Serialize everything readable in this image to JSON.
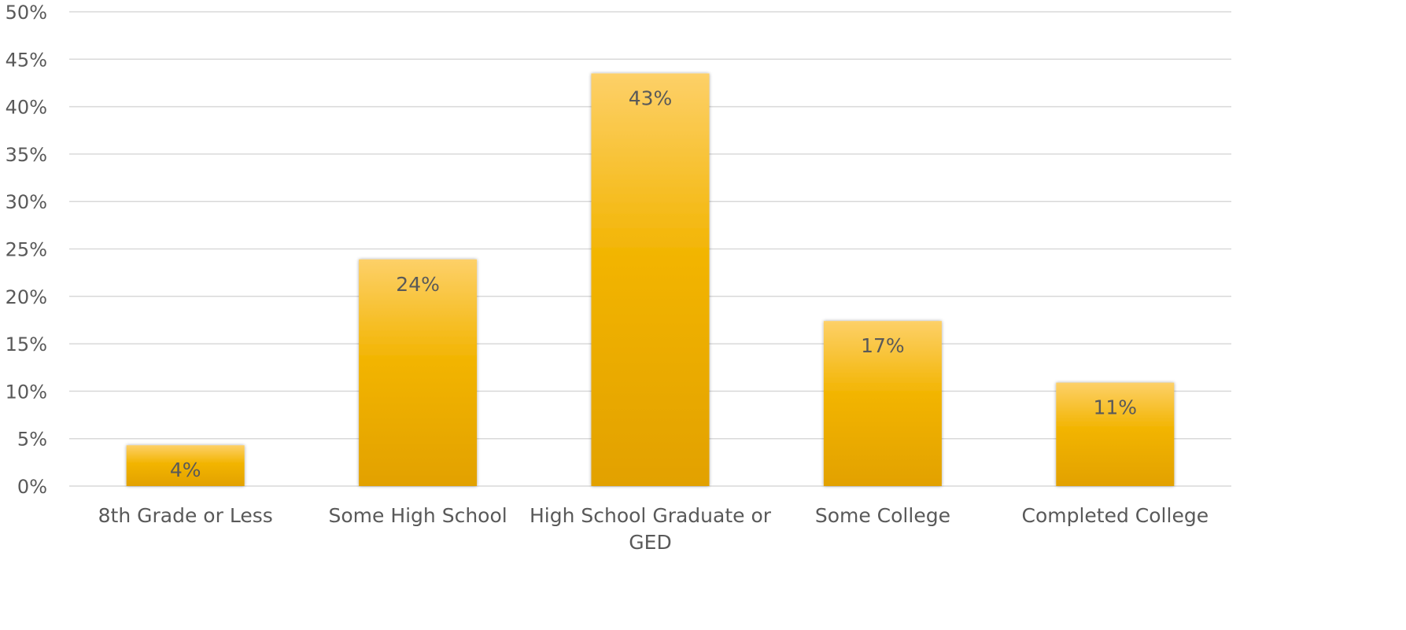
{
  "chart_data": {
    "type": "bar",
    "categories": [
      [
        "8th Grade or Less"
      ],
      [
        "Some High School"
      ],
      [
        "High School Graduate or",
        "GED"
      ],
      [
        "Some College"
      ],
      [
        "Completed College"
      ]
    ],
    "values": [
      4.3,
      23.9,
      43.5,
      17.4,
      10.9
    ],
    "data_labels": [
      "4%",
      "24%",
      "43%",
      "17%",
      "11%"
    ],
    "y_ticks": [
      "0%",
      "5%",
      "10%",
      "15%",
      "20%",
      "25%",
      "30%",
      "35%",
      "40%",
      "45%",
      "50%"
    ],
    "ylim": [
      0,
      50
    ],
    "y_tick_step": 5,
    "title": "",
    "xlabel": "",
    "ylabel": "",
    "grid": true,
    "legend": "none",
    "colors": {
      "bar_top": "#fdd068",
      "bar_mid": "#f2b400",
      "bar_bottom": "#e2a100",
      "gridline": "#d9d9d9",
      "text": "#595959"
    }
  }
}
